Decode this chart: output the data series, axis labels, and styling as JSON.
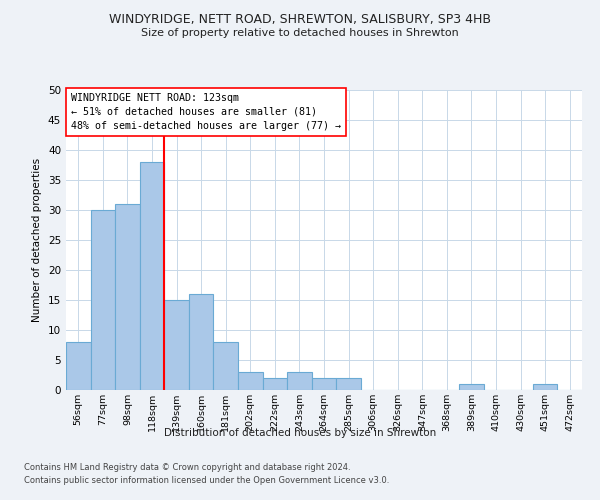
{
  "title": "WINDYRIDGE, NETT ROAD, SHREWTON, SALISBURY, SP3 4HB",
  "subtitle": "Size of property relative to detached houses in Shrewton",
  "xlabel": "Distribution of detached houses by size in Shrewton",
  "ylabel": "Number of detached properties",
  "bin_labels": [
    "56sqm",
    "77sqm",
    "98sqm",
    "118sqm",
    "139sqm",
    "160sqm",
    "181sqm",
    "202sqm",
    "222sqm",
    "243sqm",
    "264sqm",
    "285sqm",
    "306sqm",
    "326sqm",
    "347sqm",
    "368sqm",
    "389sqm",
    "410sqm",
    "430sqm",
    "451sqm",
    "472sqm"
  ],
  "bar_values": [
    8,
    30,
    31,
    38,
    15,
    16,
    8,
    3,
    2,
    3,
    2,
    2,
    0,
    0,
    0,
    0,
    1,
    0,
    0,
    1,
    0
  ],
  "bar_color": "#aac8e8",
  "bar_edge_color": "#6aaad4",
  "vline_x": 3.5,
  "vline_color": "red",
  "annotation_text": "WINDYRIDGE NETT ROAD: 123sqm\n← 51% of detached houses are smaller (81)\n48% of semi-detached houses are larger (77) →",
  "annotation_box_color": "white",
  "annotation_box_edge": "red",
  "ylim": [
    0,
    50
  ],
  "yticks": [
    0,
    5,
    10,
    15,
    20,
    25,
    30,
    35,
    40,
    45,
    50
  ],
  "footer1": "Contains HM Land Registry data © Crown copyright and database right 2024.",
  "footer2": "Contains public sector information licensed under the Open Government Licence v3.0.",
  "background_color": "#eef2f7",
  "plot_bg_color": "#ffffff",
  "grid_color": "#c8d8e8"
}
